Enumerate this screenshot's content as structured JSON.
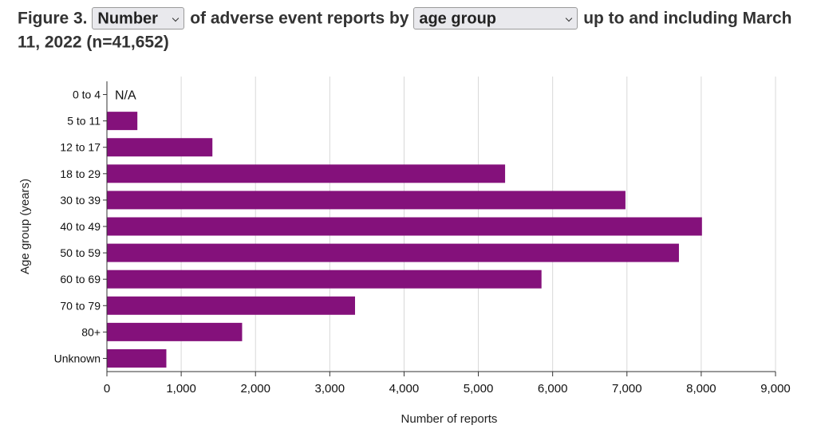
{
  "title": {
    "prefix": "Figure 3.",
    "metric_select": {
      "selected": "Number",
      "icon": "chevron-down-icon"
    },
    "middle": "of adverse event reports by",
    "group_select": {
      "selected": "age group",
      "icon": "chevron-down-icon"
    },
    "suffix": "up to and including March 11, 2022 (n=41,652)"
  },
  "chart_data": {
    "type": "bar",
    "orientation": "horizontal",
    "categories": [
      "0 to 4",
      "5 to 11",
      "12 to 17",
      "18 to 29",
      "30 to 39",
      "40 to 49",
      "50 to 59",
      "60 to 69",
      "70 to 79",
      "80+",
      "Unknown"
    ],
    "values": [
      null,
      410,
      1420,
      5360,
      6980,
      8010,
      7700,
      5850,
      3340,
      1820,
      800
    ],
    "missing_label": "N/A",
    "xlabel": "Number of reports",
    "ylabel": "Age group (years)",
    "xlim": [
      0,
      9000
    ],
    "xticks": [
      0,
      1000,
      2000,
      3000,
      4000,
      5000,
      6000,
      7000,
      8000,
      9000
    ],
    "xtick_labels": [
      "0",
      "1,000",
      "2,000",
      "3,000",
      "4,000",
      "5,000",
      "6,000",
      "7,000",
      "8,000",
      "9,000"
    ],
    "grid": "vertical",
    "bar_color": "#84117b"
  }
}
